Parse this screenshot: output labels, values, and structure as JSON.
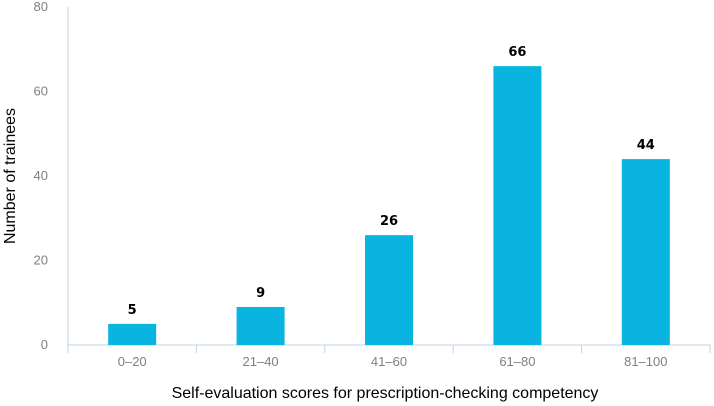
{
  "chart_data": {
    "type": "bar",
    "categories": [
      "0–20",
      "21–40",
      "41–60",
      "61–80",
      "81–100"
    ],
    "values": [
      5,
      9,
      26,
      66,
      44
    ],
    "data_labels": [
      "5",
      "9",
      "26",
      "66",
      "44"
    ],
    "xlabel": "Self-evaluation scores for prescription-checking competency",
    "ylabel": "Number of trainees",
    "ylim": [
      0,
      80
    ],
    "yticks": [
      0,
      20,
      40,
      60,
      80
    ],
    "ytick_labels": [
      "0",
      "20",
      "40",
      "60",
      "80"
    ],
    "grid": false,
    "legend": "none",
    "bar_color": "#0ab4e0",
    "axis_color": "#bfd3ea"
  }
}
